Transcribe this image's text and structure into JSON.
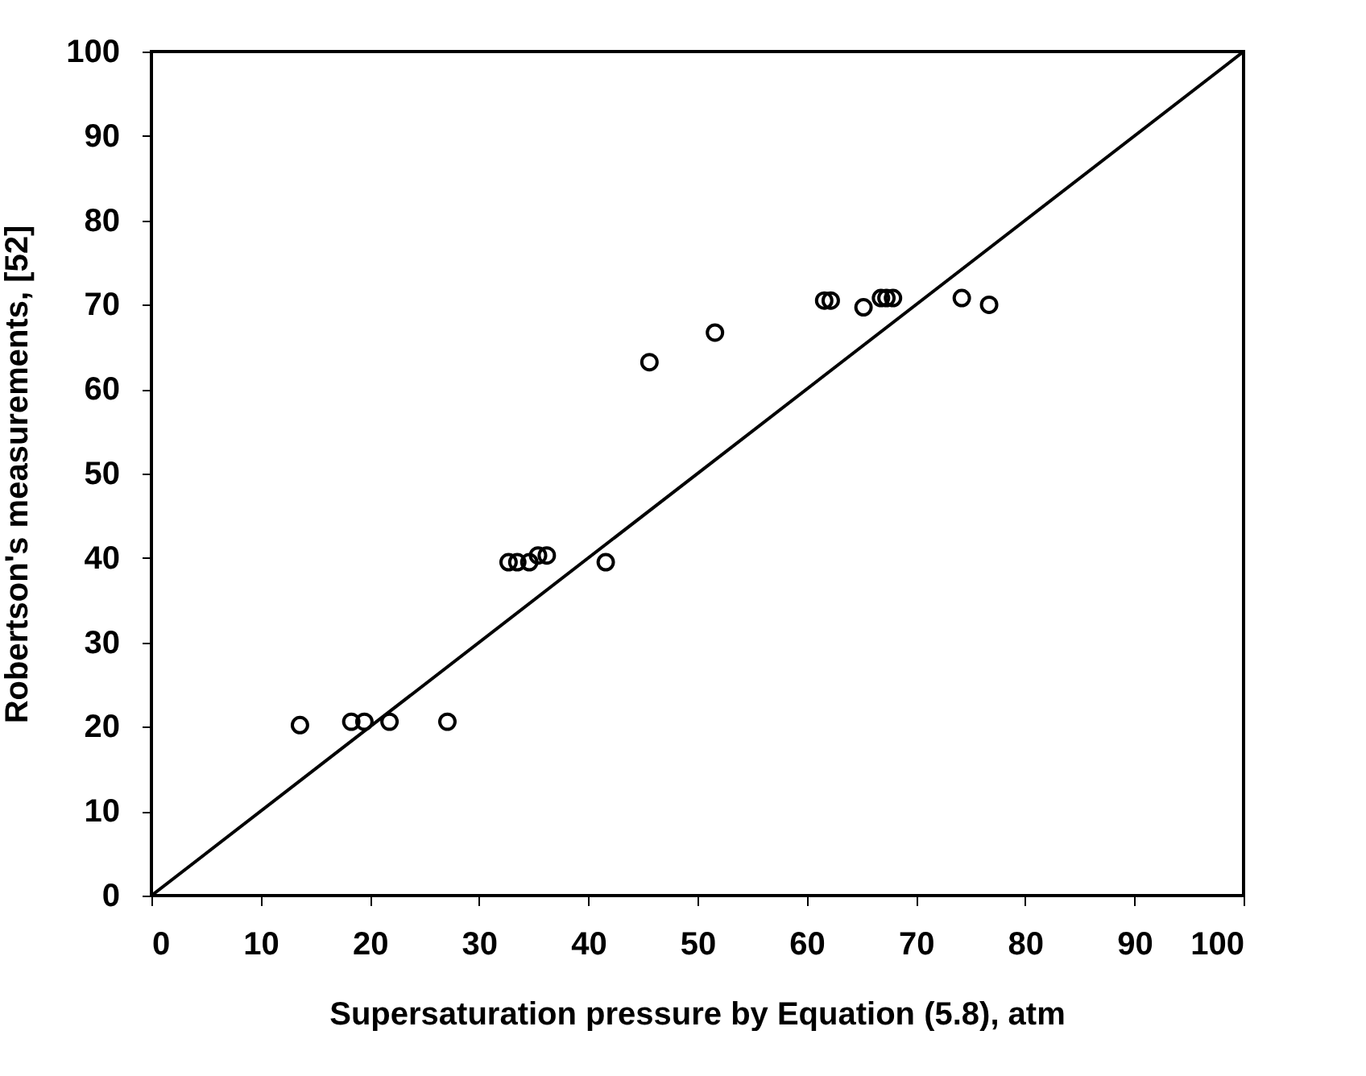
{
  "chart_data": {
    "type": "scatter",
    "xlabel": "Supersaturation pressure by Equation (5.8), atm",
    "ylabel": "Robertson's measurements, [52]",
    "xlim": [
      0,
      100
    ],
    "ylim": [
      0,
      100
    ],
    "xticks": [
      0,
      10,
      20,
      30,
      40,
      50,
      60,
      70,
      80,
      90,
      100
    ],
    "yticks": [
      0,
      10,
      20,
      30,
      40,
      50,
      60,
      70,
      80,
      90,
      100
    ],
    "grid": false,
    "series": [
      {
        "type": "scatter",
        "color": "#000000",
        "marker": "circle",
        "x": [
          13.6,
          18.3,
          19.5,
          21.8,
          27.1,
          32.7,
          33.5,
          34.6,
          35.4,
          36.2,
          41.6,
          45.6,
          51.6,
          61.6,
          62.2,
          65.2,
          66.8,
          67.3,
          67.9,
          74.2,
          76.7
        ],
        "values": [
          20.2,
          20.6,
          20.6,
          20.6,
          20.6,
          39.5,
          39.5,
          39.5,
          40.3,
          40.3,
          39.5,
          63.2,
          66.7,
          70.5,
          70.5,
          69.7,
          70.8,
          70.8,
          70.8,
          70.8,
          70.0
        ]
      },
      {
        "type": "line",
        "color": "#000000",
        "line_style": "solid",
        "marker": "none",
        "x": [
          0,
          100
        ],
        "values": [
          0,
          100
        ]
      }
    ]
  }
}
